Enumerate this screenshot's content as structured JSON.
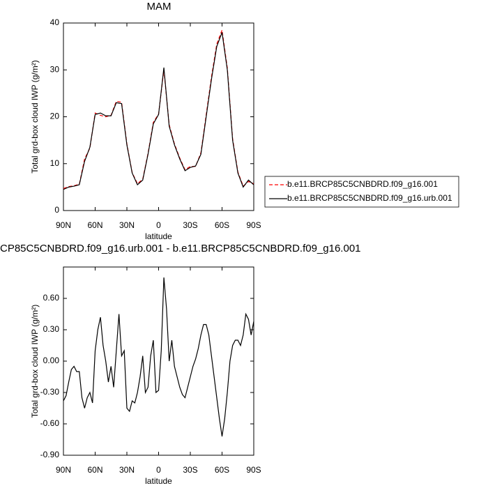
{
  "chart_data": [
    {
      "type": "line",
      "title": "MAM",
      "xlabel": "latitude",
      "ylabel": "Total grd-box cloud IWP (g/m²)",
      "x": [
        90,
        85,
        80,
        75,
        70,
        65,
        60,
        55,
        50,
        45,
        40,
        35,
        30,
        25,
        20,
        15,
        10,
        5,
        0,
        -5,
        -10,
        -15,
        -20,
        -25,
        -30,
        -35,
        -40,
        -45,
        -50,
        -55,
        -60,
        -65,
        -70,
        -75,
        -80,
        -85,
        -90
      ],
      "series": [
        {
          "name": "b.e11.BRCP85C5CNBDRD.f09_g16.001",
          "color": "#ff0000",
          "dash": true,
          "values": [
            4.7,
            5.1,
            5.3,
            5.6,
            11,
            13.3,
            20.8,
            20.3,
            20.0,
            20.3,
            23.3,
            23.1,
            14.2,
            8.1,
            5.7,
            6.7,
            12.2,
            18.8,
            20.6,
            30.0,
            18.3,
            14.2,
            11.2,
            8.7,
            9.4,
            9.4,
            12.3,
            20.4,
            28.5,
            35.5,
            38.5,
            30.4,
            15.3,
            8.2,
            5.2,
            6.2,
            5.7
          ]
        },
        {
          "name": "b.e11.BRCP85C5CNBDRD.f09_g16.urb.001",
          "color": "#000000",
          "dash": false,
          "values": [
            4.5,
            5.0,
            5.2,
            5.5,
            10.5,
            13.5,
            20.5,
            20.8,
            20.2,
            20.2,
            23.0,
            22.8,
            14,
            8,
            5.5,
            6.5,
            12,
            18.5,
            20.5,
            30.5,
            18,
            14,
            11,
            8.5,
            9.2,
            9.5,
            12,
            20,
            28,
            35,
            38,
            30,
            15,
            8,
            5,
            6.5,
            5.5
          ]
        }
      ],
      "xlim": [
        90,
        -90
      ],
      "xticks": [
        {
          "value": 90,
          "label": "90N"
        },
        {
          "value": 60,
          "label": "60N"
        },
        {
          "value": 30,
          "label": "30N"
        },
        0,
        {
          "value": -30,
          "label": "30S"
        },
        {
          "value": -60,
          "label": "60S"
        },
        {
          "value": -90,
          "label": "90S"
        }
      ],
      "ylim": [
        0,
        40
      ],
      "yticks": [
        0,
        10,
        20,
        30,
        40
      ],
      "legend_position": "right"
    },
    {
      "type": "line",
      "title": "CP85C5CNBDRD.f09_g16.urb.001 - b.e11.BRCP85C5CNBDRD.f09_g16.001",
      "xlabel": "latitude",
      "ylabel": "Total grd-box cloud IWP (g/m²)",
      "x": [
        90,
        87.5,
        85,
        82.5,
        80,
        77.5,
        75,
        72.5,
        70,
        67.5,
        65,
        62.5,
        60,
        57.5,
        55,
        52.5,
        50,
        47.5,
        45,
        42.5,
        40,
        37.5,
        35,
        32.5,
        30,
        27.5,
        25,
        22.5,
        20,
        17.5,
        15,
        12.5,
        10,
        7.5,
        5,
        2.5,
        0,
        -2.5,
        -5,
        -7.5,
        -10,
        -12.5,
        -15,
        -17.5,
        -20,
        -22.5,
        -25,
        -27.5,
        -30,
        -32.5,
        -35,
        -37.5,
        -40,
        -42.5,
        -45,
        -47.5,
        -50,
        -52.5,
        -55,
        -57.5,
        -60,
        -62.5,
        -65,
        -67.5,
        -70,
        -72.5,
        -75,
        -77.5,
        -80,
        -82.5,
        -85,
        -87.5,
        -90
      ],
      "series": [
        {
          "color": "#000000",
          "dash": false,
          "values": [
            -0.38,
            -0.33,
            -0.2,
            -0.08,
            -0.05,
            -0.1,
            -0.1,
            -0.35,
            -0.45,
            -0.35,
            -0.3,
            -0.4,
            0.1,
            0.3,
            0.42,
            0.15,
            0.0,
            -0.2,
            -0.05,
            -0.25,
            0.1,
            0.45,
            0.05,
            0.1,
            -0.45,
            -0.48,
            -0.38,
            -0.4,
            -0.3,
            -0.15,
            0.05,
            -0.3,
            -0.25,
            0.05,
            0.2,
            -0.3,
            -0.28,
            0.1,
            0.8,
            0.5,
            0.0,
            0.2,
            -0.05,
            -0.15,
            -0.25,
            -0.32,
            -0.35,
            -0.25,
            -0.15,
            -0.05,
            0.02,
            0.12,
            0.25,
            0.35,
            0.35,
            0.25,
            0.05,
            -0.15,
            -0.35,
            -0.55,
            -0.72,
            -0.55,
            -0.3,
            0.0,
            0.15,
            0.2,
            0.2,
            0.15,
            0.25,
            0.45,
            0.4,
            0.25,
            0.38
          ]
        }
      ],
      "xlim": [
        90,
        -90
      ],
      "xticks": [
        {
          "value": 90,
          "label": "90N"
        },
        {
          "value": 60,
          "label": "60N"
        },
        {
          "value": 30,
          "label": "30N"
        },
        0,
        {
          "value": -30,
          "label": "30S"
        },
        {
          "value": -60,
          "label": "60S"
        },
        {
          "value": -90,
          "label": "90S"
        }
      ],
      "ylim": [
        -0.9,
        0.9
      ],
      "yticks": [
        {
          "value": -0.9,
          "label": "-0.90"
        },
        {
          "value": -0.6,
          "label": "-0.60"
        },
        {
          "value": -0.3,
          "label": "-0.30"
        },
        {
          "value": 0,
          "label": "0.00"
        },
        {
          "value": 0.3,
          "label": "0.30"
        },
        {
          "value": 0.6,
          "label": "0.60"
        }
      ]
    }
  ]
}
